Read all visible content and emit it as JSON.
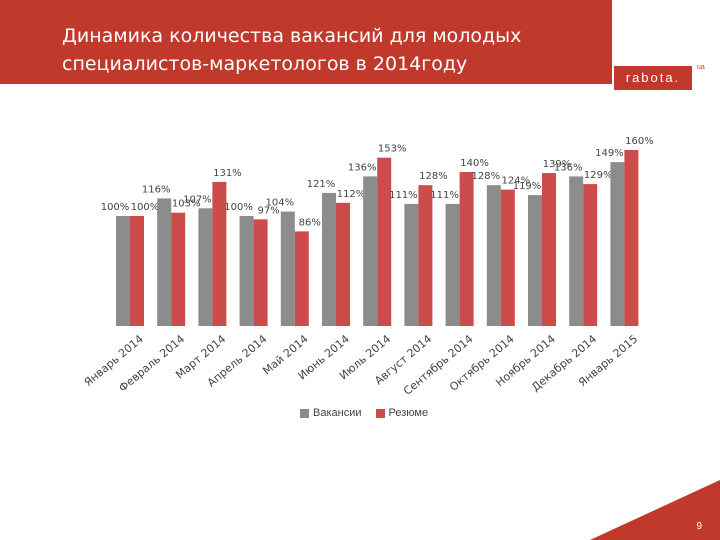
{
  "header": {
    "title_line1": "Динамика количества вакансий  для молодых",
    "title_line2": "специалистов-маркетологов в 2014году"
  },
  "logo": {
    "text": "rabota.",
    "sup": "ua"
  },
  "page_number": "9",
  "colors": {
    "accent": "#c0392b",
    "vacancies": "#8c8c8c",
    "resumes": "#cc4b4b"
  },
  "chart_data": {
    "type": "bar",
    "title": "",
    "xlabel": "",
    "ylabel": "",
    "ylim": [
      0,
      160
    ],
    "grid": false,
    "legend_placement": "bottom",
    "categories": [
      "Январь 2014",
      "Февраль 2014",
      "Март 2014",
      "Апрель 2014",
      "Май 2014",
      "Июнь 2014",
      "Июль 2014",
      "Август 2014",
      "Сентябрь 2014",
      "Октябрь 2014",
      "Ноябрь 2014",
      "Декабрь 2014",
      "Январь 2015"
    ],
    "series": [
      {
        "name": "Вакансии",
        "values": [
          100,
          116,
          107,
          100,
          104,
          121,
          136,
          111,
          111,
          128,
          119,
          136,
          149
        ],
        "labels": [
          "100%",
          "116%",
          "107%",
          "100%",
          "104%",
          "121%",
          "136%",
          "111%",
          "111%",
          "128%",
          "119%",
          "136%",
          "149%"
        ]
      },
      {
        "name": "Резюме",
        "values": [
          100,
          103,
          131,
          97,
          86,
          112,
          153,
          128,
          140,
          124,
          139,
          129,
          160
        ],
        "labels": [
          "100%",
          "103%",
          "131%",
          "97%",
          "86%",
          "112%",
          "153%",
          "128%",
          "140%",
          "124%",
          "139%",
          "129%",
          "160%"
        ]
      }
    ]
  }
}
